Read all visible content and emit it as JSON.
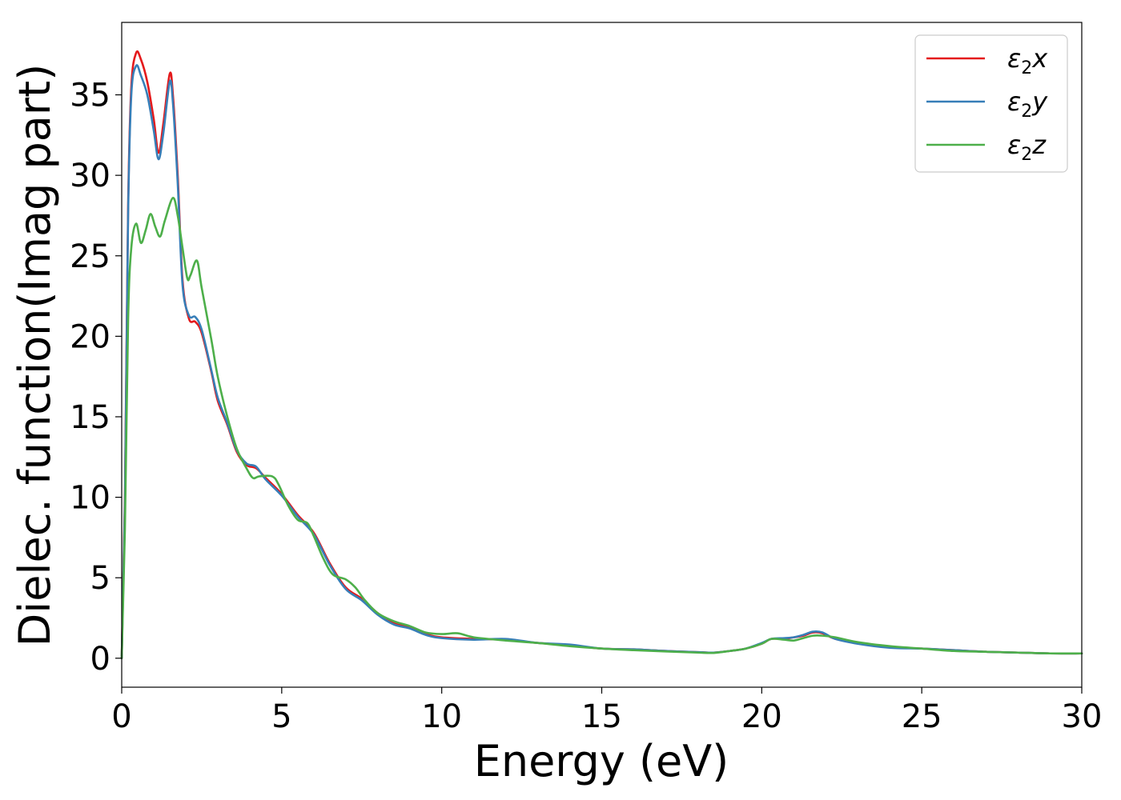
{
  "chart_data": {
    "type": "line",
    "title": "",
    "xlabel": "Energy (eV)",
    "ylabel": "Dielec. function(Imag part)",
    "xlim": [
      0,
      30
    ],
    "ylim": [
      -1.8,
      39.5
    ],
    "xticks": [
      0,
      5,
      10,
      15,
      20,
      25,
      30
    ],
    "yticks": [
      0,
      5,
      10,
      15,
      20,
      25,
      30,
      35
    ],
    "grid": false,
    "legend_position": "top-right",
    "series": [
      {
        "name": "ε₂x",
        "legend_base": "ε",
        "legend_sub": "2",
        "legend_var": "x",
        "color": "#e41a1c",
        "x": [
          0,
          0.1,
          0.2,
          0.3,
          0.45,
          0.6,
          0.8,
          1.0,
          1.15,
          1.3,
          1.5,
          1.6,
          1.75,
          1.9,
          2.1,
          2.3,
          2.5,
          2.8,
          3.0,
          3.3,
          3.6,
          3.9,
          4.2,
          4.5,
          5.0,
          5.5,
          6.0,
          6.5,
          7.0,
          7.5,
          8.0,
          8.5,
          9.0,
          9.5,
          10.0,
          11.0,
          12.0,
          13.0,
          14.0,
          15.0,
          16.0,
          17.0,
          18.0,
          18.5,
          19.0,
          19.5,
          20.0,
          20.3,
          20.7,
          21.0,
          21.3,
          21.6,
          21.9,
          22.3,
          23.0,
          24.0,
          25.0,
          26.0,
          27.0,
          28.0,
          29.0,
          30.0
        ],
        "values": [
          0,
          10,
          28,
          35.5,
          37.6,
          37.2,
          35.8,
          33.5,
          31.4,
          33.2,
          36.3,
          35.0,
          30.0,
          23.5,
          21.1,
          20.9,
          20.2,
          17.8,
          16.0,
          14.5,
          12.8,
          12.0,
          11.8,
          11.2,
          10.2,
          8.9,
          7.8,
          5.9,
          4.4,
          3.7,
          2.8,
          2.2,
          1.9,
          1.5,
          1.3,
          1.2,
          1.15,
          0.95,
          0.8,
          0.6,
          0.55,
          0.45,
          0.38,
          0.35,
          0.45,
          0.6,
          0.9,
          1.2,
          1.2,
          1.3,
          1.4,
          1.6,
          1.55,
          1.2,
          0.95,
          0.7,
          0.6,
          0.5,
          0.4,
          0.35,
          0.3,
          0.3
        ]
      },
      {
        "name": "ε₂y",
        "legend_base": "ε",
        "legend_sub": "2",
        "legend_var": "y",
        "color": "#377eb8",
        "x": [
          0,
          0.1,
          0.2,
          0.3,
          0.45,
          0.6,
          0.8,
          1.0,
          1.15,
          1.3,
          1.5,
          1.6,
          1.75,
          1.9,
          2.1,
          2.3,
          2.5,
          2.8,
          3.0,
          3.3,
          3.6,
          3.9,
          4.2,
          4.5,
          5.0,
          5.5,
          6.0,
          6.5,
          7.0,
          7.5,
          8.0,
          8.5,
          9.0,
          9.5,
          10.0,
          11.0,
          12.0,
          13.0,
          14.0,
          15.0,
          16.0,
          17.0,
          18.0,
          18.5,
          19.0,
          19.5,
          20.0,
          20.3,
          20.7,
          21.0,
          21.3,
          21.6,
          21.9,
          22.3,
          23.0,
          24.0,
          25.0,
          26.0,
          27.0,
          28.0,
          29.0,
          30.0
        ],
        "values": [
          0,
          9.5,
          27.5,
          35.0,
          36.8,
          36.2,
          35.0,
          32.8,
          31.0,
          32.6,
          35.8,
          34.5,
          29.5,
          23.2,
          21.3,
          21.2,
          20.4,
          17.9,
          16.2,
          14.6,
          12.9,
          12.1,
          11.9,
          11.1,
          10.1,
          8.8,
          7.7,
          5.8,
          4.3,
          3.6,
          2.7,
          2.1,
          1.85,
          1.45,
          1.25,
          1.15,
          1.2,
          0.95,
          0.85,
          0.6,
          0.55,
          0.45,
          0.38,
          0.35,
          0.45,
          0.6,
          0.95,
          1.2,
          1.25,
          1.3,
          1.45,
          1.65,
          1.6,
          1.2,
          0.9,
          0.65,
          0.6,
          0.5,
          0.4,
          0.35,
          0.3,
          0.3
        ]
      },
      {
        "name": "ε₂z",
        "legend_base": "ε",
        "legend_sub": "2",
        "legend_var": "z",
        "color": "#4daf4a",
        "x": [
          0,
          0.1,
          0.2,
          0.3,
          0.45,
          0.6,
          0.75,
          0.9,
          1.05,
          1.2,
          1.35,
          1.6,
          1.75,
          1.9,
          2.05,
          2.15,
          2.35,
          2.5,
          2.8,
          3.0,
          3.3,
          3.6,
          3.9,
          4.1,
          4.3,
          4.7,
          4.9,
          5.2,
          5.5,
          5.8,
          6.0,
          6.3,
          6.6,
          7.0,
          7.3,
          7.6,
          8.0,
          8.5,
          9.0,
          9.5,
          10.0,
          10.5,
          11.0,
          12.0,
          13.0,
          14.0,
          15.0,
          16.0,
          17.0,
          18.0,
          18.5,
          19.0,
          19.5,
          20.0,
          20.3,
          20.7,
          21.0,
          21.3,
          21.6,
          21.9,
          22.3,
          23.0,
          24.0,
          25.0,
          26.0,
          27.0,
          28.0,
          29.0,
          30.0
        ],
        "values": [
          0,
          8,
          21,
          25.5,
          27.0,
          25.8,
          26.6,
          27.6,
          26.8,
          26.2,
          27.2,
          28.6,
          27.5,
          25.5,
          23.6,
          23.8,
          24.7,
          23.0,
          19.8,
          17.5,
          15.0,
          13.0,
          11.8,
          11.2,
          11.3,
          11.3,
          10.8,
          9.5,
          8.6,
          8.4,
          7.6,
          6.2,
          5.2,
          4.9,
          4.4,
          3.6,
          2.8,
          2.3,
          2.0,
          1.6,
          1.5,
          1.55,
          1.3,
          1.1,
          0.95,
          0.75,
          0.6,
          0.5,
          0.42,
          0.35,
          0.33,
          0.45,
          0.6,
          0.9,
          1.2,
          1.15,
          1.1,
          1.25,
          1.4,
          1.4,
          1.3,
          1.0,
          0.75,
          0.6,
          0.45,
          0.4,
          0.35,
          0.3,
          0.3
        ]
      }
    ]
  }
}
